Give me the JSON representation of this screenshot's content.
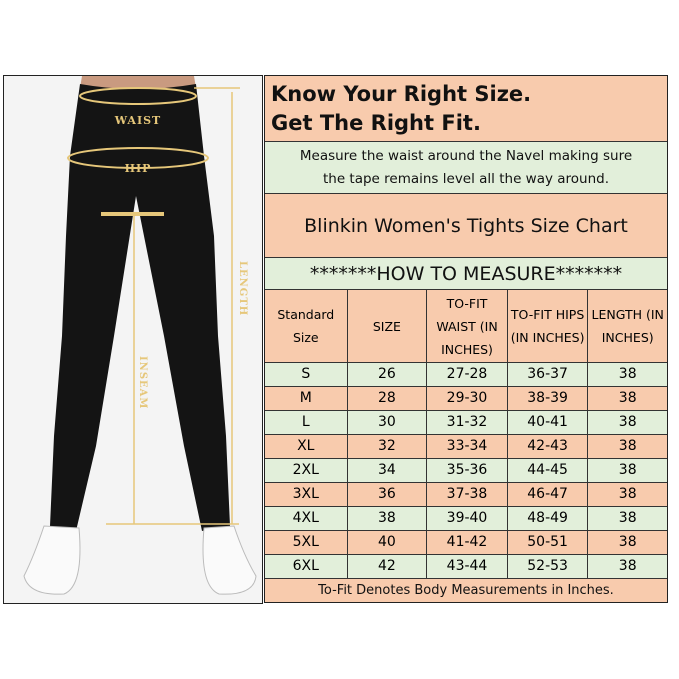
{
  "photo": {
    "labels": {
      "waist": "WAIST",
      "hip": "HIP",
      "length": "LENGTH",
      "inseam": "INSEAM"
    },
    "accent_color": "#e6c77a"
  },
  "chart": {
    "title_line1": "Know Your Right Size.",
    "title_line2": "Get The Right Fit.",
    "measure_line1": "Measure the waist around the Navel making sure",
    "measure_line2": "the tape remains level all the way around.",
    "chart_name": "Blinkin Women's Tights Size Chart",
    "how_to": "*******HOW TO MEASURE*******",
    "headers": [
      "Standard Size",
      "SIZE",
      "TO-FIT WAIST (IN INCHES)",
      "TO-FIT HIPS (IN INCHES)",
      "LENGTH (IN INCHES)"
    ],
    "rows": [
      [
        "S",
        "26",
        "27-28",
        "36-37",
        "38"
      ],
      [
        "M",
        "28",
        "29-30",
        "38-39",
        "38"
      ],
      [
        "L",
        "30",
        "31-32",
        "40-41",
        "38"
      ],
      [
        "XL",
        "32",
        "33-34",
        "42-43",
        "38"
      ],
      [
        "2XL",
        "34",
        "35-36",
        "44-45",
        "38"
      ],
      [
        "3XL",
        "36",
        "37-38",
        "46-47",
        "38"
      ],
      [
        "4XL",
        "38",
        "39-40",
        "48-49",
        "38"
      ],
      [
        "5XL",
        "40",
        "41-42",
        "50-51",
        "38"
      ],
      [
        "6XL",
        "42",
        "43-44",
        "52-53",
        "38"
      ]
    ],
    "footer": "To-Fit Denotes Body Measurements in Inches.",
    "colors": {
      "peach": "#f8cbad",
      "green": "#e2efda"
    }
  }
}
